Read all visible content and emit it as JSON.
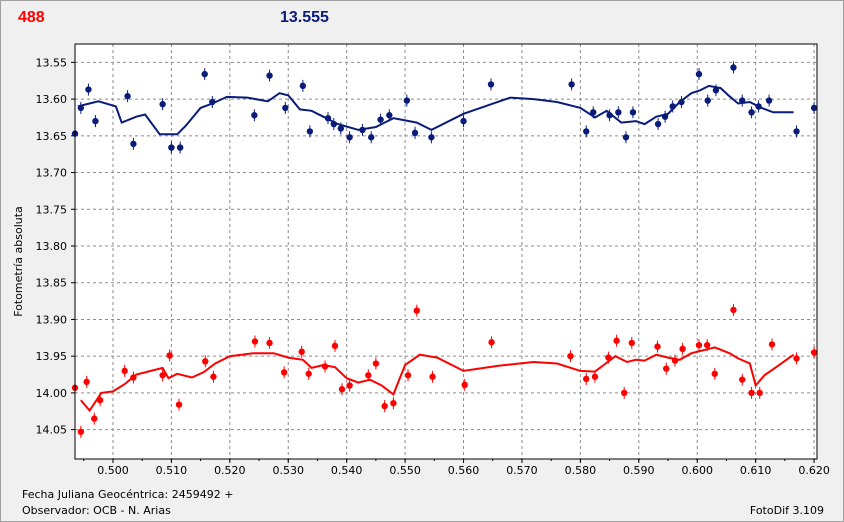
{
  "header": {
    "left_label": "488",
    "center_value": "13.555"
  },
  "footer": {
    "line1": "Fecha Juliana Geocéntrica: 2459492 +",
    "line2": "Observador: OCB - N. Arias",
    "software": "FotoDif 3.109"
  },
  "colors": {
    "blue": "#0a1c7a",
    "red": "#ff0000",
    "grid": "#8c8c8c",
    "plot_bg": "#ffffff",
    "window_bg": "#f0f0f0"
  },
  "chart_data": {
    "type": "scatter",
    "title": "",
    "xlabel": "",
    "ylabel": "Fotometría absoluta",
    "xlim": [
      0.4935,
      0.6205
    ],
    "ylim": [
      14.09,
      13.525
    ],
    "y_inverted": true,
    "grid": true,
    "x_ticks": [
      "0.500",
      "0.510",
      "0.520",
      "0.530",
      "0.540",
      "0.550",
      "0.560",
      "0.570",
      "0.580",
      "0.590",
      "0.600",
      "0.610",
      "0.620"
    ],
    "y_ticks": [
      "13.55",
      "13.60",
      "13.65",
      "13.70",
      "13.75",
      "13.80",
      "13.85",
      "13.90",
      "13.95",
      "14.00",
      "14.05"
    ],
    "series": [
      {
        "color": "#0a1c7a",
        "points": [
          [
            0.4935,
            13.647
          ],
          [
            0.4945,
            13.612
          ],
          [
            0.4958,
            13.587
          ],
          [
            0.497,
            13.63
          ],
          [
            0.5025,
            13.596
          ],
          [
            0.5035,
            13.661
          ],
          [
            0.5085,
            13.607
          ],
          [
            0.51,
            13.666
          ],
          [
            0.5115,
            13.666
          ],
          [
            0.5157,
            13.566
          ],
          [
            0.517,
            13.604
          ],
          [
            0.5242,
            13.622
          ],
          [
            0.5268,
            13.568
          ],
          [
            0.5295,
            13.612
          ],
          [
            0.5325,
            13.582
          ],
          [
            0.5337,
            13.644
          ],
          [
            0.5368,
            13.626
          ],
          [
            0.5378,
            13.634
          ],
          [
            0.539,
            13.64
          ],
          [
            0.5405,
            13.652
          ],
          [
            0.5427,
            13.642
          ],
          [
            0.5442,
            13.652
          ],
          [
            0.5458,
            13.628
          ],
          [
            0.5473,
            13.622
          ],
          [
            0.5503,
            13.602
          ],
          [
            0.5517,
            13.646
          ],
          [
            0.5545,
            13.652
          ],
          [
            0.56,
            13.63
          ],
          [
            0.5647,
            13.58
          ],
          [
            0.5785,
            13.58
          ],
          [
            0.581,
            13.644
          ],
          [
            0.5822,
            13.618
          ],
          [
            0.585,
            13.622
          ],
          [
            0.5865,
            13.618
          ],
          [
            0.5878,
            13.652
          ],
          [
            0.589,
            13.618
          ],
          [
            0.5933,
            13.634
          ],
          [
            0.5945,
            13.624
          ],
          [
            0.5958,
            13.61
          ],
          [
            0.5973,
            13.604
          ],
          [
            0.6003,
            13.566
          ],
          [
            0.6018,
            13.602
          ],
          [
            0.6032,
            13.588
          ],
          [
            0.6062,
            13.557
          ],
          [
            0.6077,
            13.602
          ],
          [
            0.6093,
            13.618
          ],
          [
            0.6105,
            13.61
          ],
          [
            0.6123,
            13.602
          ],
          [
            0.617,
            13.644
          ],
          [
            0.62,
            13.612
          ]
        ],
        "smoothed": [
          [
            0.494,
            13.61
          ],
          [
            0.4975,
            13.603
          ],
          [
            0.5005,
            13.61
          ],
          [
            0.5015,
            13.632
          ],
          [
            0.504,
            13.624
          ],
          [
            0.5055,
            13.621
          ],
          [
            0.508,
            13.648
          ],
          [
            0.511,
            13.648
          ],
          [
            0.5125,
            13.636
          ],
          [
            0.515,
            13.612
          ],
          [
            0.517,
            13.606
          ],
          [
            0.5195,
            13.597
          ],
          [
            0.523,
            13.598
          ],
          [
            0.5265,
            13.603
          ],
          [
            0.5285,
            13.592
          ],
          [
            0.53,
            13.595
          ],
          [
            0.532,
            13.614
          ],
          [
            0.534,
            13.616
          ],
          [
            0.536,
            13.624
          ],
          [
            0.5385,
            13.634
          ],
          [
            0.542,
            13.642
          ],
          [
            0.545,
            13.638
          ],
          [
            0.548,
            13.626
          ],
          [
            0.552,
            13.632
          ],
          [
            0.5545,
            13.642
          ],
          [
            0.56,
            13.62
          ],
          [
            0.564,
            13.609
          ],
          [
            0.568,
            13.598
          ],
          [
            0.572,
            13.6
          ],
          [
            0.576,
            13.604
          ],
          [
            0.58,
            13.612
          ],
          [
            0.5825,
            13.625
          ],
          [
            0.5845,
            13.616
          ],
          [
            0.587,
            13.632
          ],
          [
            0.5895,
            13.63
          ],
          [
            0.591,
            13.634
          ],
          [
            0.593,
            13.624
          ],
          [
            0.595,
            13.62
          ],
          [
            0.597,
            13.604
          ],
          [
            0.599,
            13.592
          ],
          [
            0.6005,
            13.588
          ],
          [
            0.602,
            13.582
          ],
          [
            0.604,
            13.585
          ],
          [
            0.6055,
            13.596
          ],
          [
            0.607,
            13.606
          ],
          [
            0.609,
            13.604
          ],
          [
            0.611,
            13.612
          ],
          [
            0.613,
            13.618
          ],
          [
            0.6165,
            13.618
          ]
        ]
      },
      {
        "color": "#ff0000",
        "points": [
          [
            0.4935,
            13.993
          ],
          [
            0.4945,
            14.053
          ],
          [
            0.4955,
            13.985
          ],
          [
            0.4968,
            14.035
          ],
          [
            0.4978,
            14.01
          ],
          [
            0.502,
            13.97
          ],
          [
            0.5035,
            13.979
          ],
          [
            0.5085,
            13.976
          ],
          [
            0.5097,
            13.949
          ],
          [
            0.5113,
            14.016
          ],
          [
            0.5158,
            13.957
          ],
          [
            0.5172,
            13.978
          ],
          [
            0.5243,
            13.93
          ],
          [
            0.5268,
            13.932
          ],
          [
            0.5293,
            13.972
          ],
          [
            0.5323,
            13.944
          ],
          [
            0.5335,
            13.974
          ],
          [
            0.5363,
            13.964
          ],
          [
            0.538,
            13.936
          ],
          [
            0.5392,
            13.995
          ],
          [
            0.5405,
            13.99
          ],
          [
            0.5437,
            13.976
          ],
          [
            0.545,
            13.96
          ],
          [
            0.5465,
            14.018
          ],
          [
            0.548,
            14.014
          ],
          [
            0.5505,
            13.976
          ],
          [
            0.552,
            13.888
          ],
          [
            0.5547,
            13.978
          ],
          [
            0.5602,
            13.989
          ],
          [
            0.5648,
            13.931
          ],
          [
            0.5783,
            13.95
          ],
          [
            0.581,
            13.981
          ],
          [
            0.5825,
            13.978
          ],
          [
            0.5848,
            13.952
          ],
          [
            0.5862,
            13.929
          ],
          [
            0.5875,
            14.0
          ],
          [
            0.5888,
            13.932
          ],
          [
            0.5932,
            13.937
          ],
          [
            0.5947,
            13.967
          ],
          [
            0.5962,
            13.956
          ],
          [
            0.5975,
            13.94
          ],
          [
            0.6003,
            13.935
          ],
          [
            0.6017,
            13.935
          ],
          [
            0.603,
            13.974
          ],
          [
            0.6062,
            13.887
          ],
          [
            0.6077,
            13.982
          ],
          [
            0.6093,
            14.0
          ],
          [
            0.6107,
            14.0
          ],
          [
            0.6128,
            13.934
          ],
          [
            0.617,
            13.953
          ],
          [
            0.62,
            13.945
          ]
        ],
        "smoothed": [
          [
            0.4945,
            14.01
          ],
          [
            0.496,
            14.024
          ],
          [
            0.498,
            14.0
          ],
          [
            0.5,
            13.998
          ],
          [
            0.502,
            13.988
          ],
          [
            0.504,
            13.975
          ],
          [
            0.5065,
            13.97
          ],
          [
            0.5085,
            13.966
          ],
          [
            0.5095,
            13.98
          ],
          [
            0.511,
            13.974
          ],
          [
            0.5135,
            13.979
          ],
          [
            0.5155,
            13.972
          ],
          [
            0.5175,
            13.96
          ],
          [
            0.52,
            13.95
          ],
          [
            0.524,
            13.946
          ],
          [
            0.5275,
            13.946
          ],
          [
            0.53,
            13.952
          ],
          [
            0.5325,
            13.955
          ],
          [
            0.534,
            13.966
          ],
          [
            0.536,
            13.962
          ],
          [
            0.538,
            13.965
          ],
          [
            0.54,
            13.98
          ],
          [
            0.542,
            13.986
          ],
          [
            0.544,
            13.982
          ],
          [
            0.546,
            13.99
          ],
          [
            0.548,
            14.002
          ],
          [
            0.55,
            13.962
          ],
          [
            0.5525,
            13.948
          ],
          [
            0.5555,
            13.952
          ],
          [
            0.56,
            13.97
          ],
          [
            0.566,
            13.963
          ],
          [
            0.572,
            13.958
          ],
          [
            0.576,
            13.96
          ],
          [
            0.58,
            13.97
          ],
          [
            0.5825,
            13.971
          ],
          [
            0.584,
            13.962
          ],
          [
            0.586,
            13.95
          ],
          [
            0.588,
            13.958
          ],
          [
            0.5895,
            13.955
          ],
          [
            0.591,
            13.956
          ],
          [
            0.593,
            13.948
          ],
          [
            0.595,
            13.952
          ],
          [
            0.597,
            13.955
          ],
          [
            0.599,
            13.946
          ],
          [
            0.601,
            13.942
          ],
          [
            0.603,
            13.938
          ],
          [
            0.6055,
            13.946
          ],
          [
            0.607,
            13.953
          ],
          [
            0.609,
            13.96
          ],
          [
            0.61,
            13.99
          ],
          [
            0.6115,
            13.976
          ],
          [
            0.6135,
            13.965
          ],
          [
            0.6165,
            13.948
          ]
        ]
      }
    ]
  }
}
